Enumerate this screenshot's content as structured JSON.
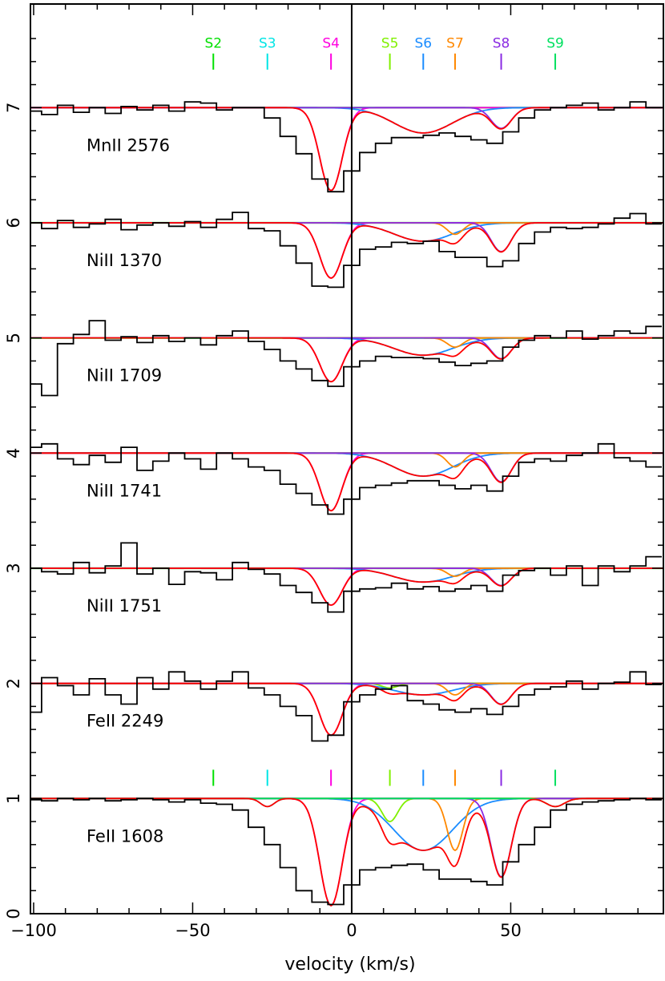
{
  "chart_data": {
    "type": "line",
    "title": "",
    "xlabel": "velocity (km/s)",
    "ylabel": "",
    "xlim": [
      -101,
      98
    ],
    "ylim": [
      0,
      7.9
    ],
    "x_ticks": [
      -100,
      -50,
      0,
      50
    ],
    "y_ticks": [
      0,
      1,
      2,
      3,
      4,
      5,
      6,
      7
    ],
    "grid": false,
    "colors": {
      "data": "#000000",
      "continuum": "#00e000",
      "total_fit": "#ff0000",
      "S2": "#00e000",
      "S3": "#00e5e5",
      "S4": "#ff00e0",
      "S5": "#80f000",
      "S6": "#1a8cff",
      "S7": "#ff8800",
      "S8": "#8a2be2",
      "S9": "#00e060"
    },
    "components": [
      {
        "label": "S2",
        "v": -43.5,
        "b": 0
      },
      {
        "label": "S3",
        "v": -26.5,
        "b": 3
      },
      {
        "label": "S4",
        "v": -6.5,
        "b": 5
      },
      {
        "label": "S5",
        "v": 12,
        "b": 3.5
      },
      {
        "label": "S6",
        "v": 22.5,
        "b": 13
      },
      {
        "label": "S7",
        "v": 32.5,
        "b": 3.5
      },
      {
        "label": "S8",
        "v": 47,
        "b": 4.5
      },
      {
        "label": "S9",
        "v": 64,
        "b": 4
      }
    ],
    "transitions": [
      {
        "label": "MnII 2576",
        "offset": 6,
        "depths": {
          "S2": 0,
          "S3": 0,
          "S4": 0.72,
          "S5": 0,
          "S6": 0.22,
          "S7": 0,
          "S8": 0.18,
          "S9": 0
        }
      },
      {
        "label": "NiII 1370",
        "offset": 5,
        "depths": {
          "S2": 0,
          "S3": 0,
          "S4": 0.48,
          "S5": 0,
          "S6": 0.16,
          "S7": 0.1,
          "S8": 0.25,
          "S9": 0
        }
      },
      {
        "label": "NiII 1709",
        "offset": 4,
        "depths": {
          "S2": 0,
          "S3": 0,
          "S4": 0.38,
          "S5": 0,
          "S6": 0.15,
          "S7": 0.08,
          "S8": 0.18,
          "S9": 0
        }
      },
      {
        "label": "NiII 1741",
        "offset": 3,
        "depths": {
          "S2": 0,
          "S3": 0,
          "S4": 0.5,
          "S5": 0,
          "S6": 0.2,
          "S7": 0.12,
          "S8": 0.25,
          "S9": 0
        }
      },
      {
        "label": "NiII 1751",
        "offset": 2,
        "depths": {
          "S2": 0,
          "S3": 0,
          "S4": 0.32,
          "S5": 0,
          "S6": 0.12,
          "S7": 0.07,
          "S8": 0.15,
          "S9": 0
        }
      },
      {
        "label": "FeII 2249",
        "offset": 1,
        "depths": {
          "S2": 0,
          "S3": 0,
          "S4": 0.45,
          "S5": 0.04,
          "S6": 0.1,
          "S7": 0.1,
          "S8": 0.18,
          "S9": 0
        }
      },
      {
        "label": "FeII 1608",
        "offset": 0,
        "depths": {
          "S2": 0.02,
          "S3": 0.07,
          "S4": 0.93,
          "S5": 0.2,
          "S6": 0.45,
          "S7": 0.45,
          "S8": 0.68,
          "S9": 0.07
        }
      }
    ],
    "series": [
      {
        "transition": "MnII 2576",
        "x": [
          -100,
          -95,
          -90,
          -85,
          -80,
          -75,
          -70,
          -65,
          -60,
          -55,
          -50,
          -45,
          -40,
          -35,
          -30,
          -25,
          -20,
          -15,
          -10,
          -5,
          0,
          5,
          10,
          15,
          20,
          25,
          30,
          35,
          40,
          45,
          50,
          55,
          60,
          65,
          70,
          75,
          80,
          85,
          90,
          95
        ],
        "y": [
          6.97,
          6.94,
          7.02,
          6.96,
          7.0,
          6.95,
          7.01,
          6.98,
          7.02,
          6.97,
          7.05,
          7.04,
          6.98,
          7.0,
          7.0,
          6.91,
          6.75,
          6.6,
          6.38,
          6.27,
          6.45,
          6.61,
          6.69,
          6.74,
          6.74,
          6.76,
          6.78,
          6.75,
          6.72,
          6.69,
          6.79,
          6.91,
          6.98,
          7.0,
          7.02,
          7.04,
          6.98,
          7.0,
          7.05,
          7.0
        ]
      },
      {
        "transition": "NiII 1370",
        "x": [
          -100,
          -95,
          -90,
          -85,
          -80,
          -75,
          -70,
          -65,
          -60,
          -55,
          -50,
          -45,
          -40,
          -35,
          -30,
          -25,
          -20,
          -15,
          -10,
          -5,
          0,
          5,
          10,
          15,
          20,
          25,
          30,
          35,
          40,
          45,
          50,
          55,
          60,
          65,
          70,
          75,
          80,
          85,
          90,
          95
        ],
        "y": [
          6.0,
          5.95,
          6.02,
          5.96,
          5.99,
          6.03,
          5.94,
          5.98,
          6.0,
          5.97,
          6.01,
          5.96,
          6.03,
          6.09,
          5.95,
          5.93,
          5.8,
          5.65,
          5.45,
          5.44,
          5.63,
          5.77,
          5.79,
          5.83,
          5.82,
          5.84,
          5.75,
          5.7,
          5.7,
          5.62,
          5.67,
          5.82,
          5.92,
          5.96,
          5.95,
          5.96,
          5.99,
          6.04,
          6.08,
          5.99
        ]
      },
      {
        "transition": "NiII 1709",
        "x": [
          -100,
          -95,
          -90,
          -85,
          -80,
          -75,
          -70,
          -65,
          -60,
          -55,
          -50,
          -45,
          -40,
          -35,
          -30,
          -25,
          -20,
          -15,
          -10,
          -5,
          0,
          5,
          10,
          15,
          20,
          25,
          30,
          35,
          40,
          45,
          50,
          55,
          60,
          65,
          70,
          75,
          80,
          85,
          90,
          95
        ],
        "y": [
          4.6,
          4.5,
          4.95,
          5.03,
          5.15,
          4.98,
          5.01,
          4.96,
          5.02,
          4.97,
          5.0,
          4.94,
          5.02,
          5.06,
          4.97,
          4.9,
          4.8,
          4.73,
          4.63,
          4.58,
          4.75,
          4.8,
          4.84,
          4.83,
          4.83,
          4.82,
          4.79,
          4.76,
          4.78,
          4.8,
          4.92,
          4.98,
          5.02,
          5.0,
          5.06,
          4.99,
          5.02,
          5.06,
          5.04,
          5.1
        ]
      },
      {
        "transition": "NiII 1741",
        "x": [
          -100,
          -95,
          -90,
          -85,
          -80,
          -75,
          -70,
          -65,
          -60,
          -55,
          -50,
          -45,
          -40,
          -35,
          -30,
          -25,
          -20,
          -15,
          -10,
          -5,
          0,
          5,
          10,
          15,
          20,
          25,
          30,
          35,
          40,
          45,
          50,
          55,
          60,
          65,
          70,
          75,
          80,
          85,
          90,
          95
        ],
        "y": [
          4.05,
          4.08,
          3.95,
          3.9,
          3.98,
          3.92,
          4.05,
          3.85,
          3.93,
          4.0,
          3.95,
          3.86,
          4.0,
          3.95,
          3.88,
          3.85,
          3.73,
          3.65,
          3.55,
          3.47,
          3.6,
          3.7,
          3.72,
          3.74,
          3.76,
          3.76,
          3.72,
          3.69,
          3.72,
          3.67,
          3.8,
          3.92,
          3.95,
          3.93,
          3.98,
          4.0,
          4.08,
          3.96,
          3.93,
          3.88
        ]
      },
      {
        "transition": "NiII 1751",
        "x": [
          -100,
          -95,
          -90,
          -85,
          -80,
          -75,
          -70,
          -65,
          -60,
          -55,
          -50,
          -45,
          -40,
          -35,
          -30,
          -25,
          -20,
          -15,
          -10,
          -5,
          0,
          5,
          10,
          15,
          20,
          25,
          30,
          35,
          40,
          45,
          50,
          55,
          60,
          65,
          70,
          75,
          80,
          85,
          90,
          95
        ],
        "y": [
          3.0,
          2.97,
          2.95,
          3.05,
          2.96,
          3.02,
          3.22,
          2.95,
          3.0,
          2.86,
          2.97,
          2.96,
          2.9,
          3.05,
          2.99,
          2.95,
          2.85,
          2.79,
          2.7,
          2.62,
          2.8,
          2.82,
          2.83,
          2.87,
          2.82,
          2.84,
          2.8,
          2.82,
          2.85,
          2.8,
          2.94,
          2.98,
          3.0,
          2.94,
          3.02,
          2.85,
          3.02,
          2.97,
          3.02,
          3.1
        ]
      },
      {
        "transition": "FeII 2249",
        "x": [
          -100,
          -95,
          -90,
          -85,
          -80,
          -75,
          -70,
          -65,
          -60,
          -55,
          -50,
          -45,
          -40,
          -35,
          -30,
          -25,
          -20,
          -15,
          -10,
          -5,
          0,
          5,
          10,
          15,
          20,
          25,
          30,
          35,
          40,
          45,
          50,
          55,
          60,
          65,
          70,
          75,
          80,
          85,
          90,
          95
        ],
        "y": [
          1.75,
          2.05,
          1.98,
          1.9,
          2.04,
          1.9,
          1.82,
          2.05,
          1.95,
          2.1,
          2.02,
          1.95,
          2.02,
          2.1,
          1.96,
          1.9,
          1.8,
          1.72,
          1.5,
          1.55,
          1.84,
          1.9,
          1.95,
          1.98,
          1.85,
          1.82,
          1.77,
          1.75,
          1.78,
          1.73,
          1.8,
          1.9,
          1.95,
          1.97,
          2.02,
          1.95,
          2.0,
          2.01,
          2.1,
          1.99
        ]
      },
      {
        "transition": "FeII 1608",
        "x": [
          -100,
          -95,
          -90,
          -85,
          -80,
          -75,
          -70,
          -65,
          -60,
          -55,
          -50,
          -45,
          -40,
          -35,
          -30,
          -25,
          -20,
          -15,
          -10,
          -5,
          0,
          5,
          10,
          15,
          20,
          25,
          30,
          35,
          40,
          45,
          50,
          55,
          60,
          65,
          70,
          75,
          80,
          85,
          90,
          95
        ],
        "y": [
          0.99,
          0.98,
          1.0,
          0.99,
          1.0,
          0.98,
          0.99,
          1.0,
          0.99,
          0.97,
          0.99,
          0.96,
          0.95,
          0.9,
          0.75,
          0.6,
          0.4,
          0.2,
          0.1,
          0.08,
          0.25,
          0.38,
          0.4,
          0.42,
          0.43,
          0.38,
          0.3,
          0.3,
          0.28,
          0.25,
          0.45,
          0.6,
          0.75,
          0.9,
          0.95,
          0.97,
          0.98,
          0.99,
          1.0,
          0.99
        ]
      }
    ]
  }
}
